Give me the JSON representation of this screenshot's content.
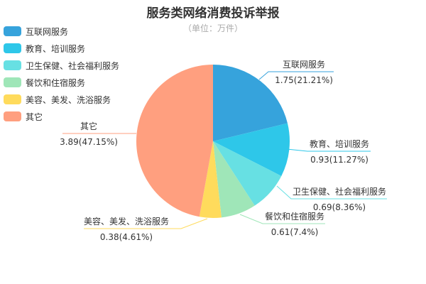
{
  "chart_data": {
    "type": "pie",
    "title": "服务类网络消费投诉举报",
    "subtitle": "（单位：万件）",
    "legend_position": "top-left",
    "series": [
      {
        "name": "互联网服务",
        "value": 1.75,
        "label": "1.75(21.21%)",
        "color": "#36a3dc"
      },
      {
        "name": "教育、培训服务",
        "value": 0.93,
        "label": "0.93(11.27%)",
        "color": "#2ec7e9"
      },
      {
        "name": "卫生保健、社会福利服务",
        "value": 0.69,
        "label": "0.69(8.36%)",
        "color": "#67e0e3"
      },
      {
        "name": "餐饮和住宿服务",
        "value": 0.61,
        "label": "0.61(7.4%)",
        "color": "#9fe6b8"
      },
      {
        "name": "美容、美发、洗浴服务",
        "value": 0.38,
        "label": "0.38(4.61%)",
        "color": "#ffdb5c"
      },
      {
        "name": "其它",
        "value": 3.89,
        "label": "3.89(47.15%)",
        "color": "#ff9f7f"
      }
    ]
  }
}
